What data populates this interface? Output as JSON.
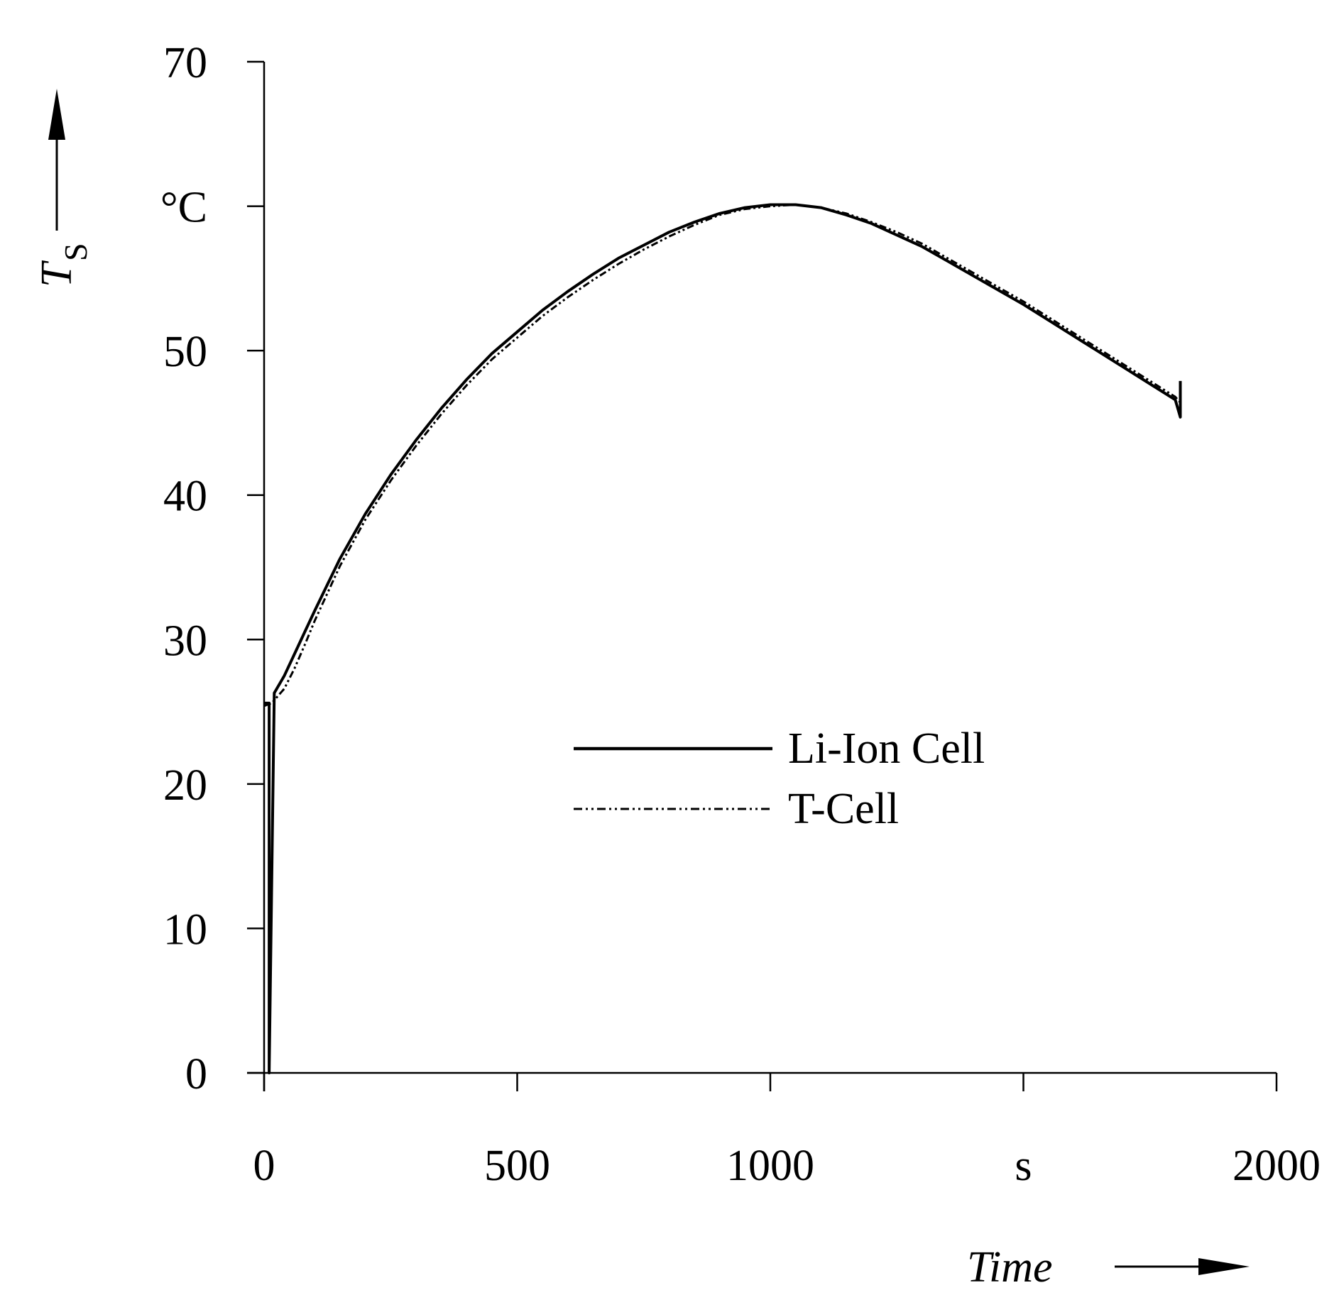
{
  "chart_data": {
    "type": "line",
    "xlim": [
      0,
      2000
    ],
    "ylim": [
      0,
      70
    ],
    "x_ticks": [
      {
        "value": 0,
        "label": "0"
      },
      {
        "value": 500,
        "label": "500"
      },
      {
        "value": 1000,
        "label": "1000"
      },
      {
        "value": 1500,
        "label": "s"
      },
      {
        "value": 2000,
        "label": "2000"
      }
    ],
    "y_ticks": [
      {
        "value": 0,
        "label": "0"
      },
      {
        "value": 10,
        "label": "10"
      },
      {
        "value": 20,
        "label": "20"
      },
      {
        "value": 30,
        "label": "30"
      },
      {
        "value": 40,
        "label": "40"
      },
      {
        "value": 50,
        "label": "50"
      },
      {
        "value": 60,
        "label": "°C"
      },
      {
        "value": 70,
        "label": "70"
      }
    ],
    "xlabel": "Time",
    "ylabel": {
      "main": "T",
      "sub": "S"
    },
    "grid": false,
    "legend_position": "center",
    "series": [
      {
        "name": "Li-Ion Cell",
        "style": "solid",
        "x": [
          0,
          10,
          10,
          20,
          40,
          60,
          80,
          100,
          125,
          150,
          200,
          250,
          300,
          350,
          400,
          450,
          500,
          550,
          600,
          650,
          700,
          750,
          800,
          850,
          900,
          950,
          1000,
          1050,
          1100,
          1150,
          1200,
          1250,
          1300,
          1350,
          1400,
          1450,
          1500,
          1550,
          1600,
          1650,
          1700,
          1750,
          1800,
          1810,
          1810,
          1810
        ],
        "y": [
          25.6,
          25.6,
          0,
          26.3,
          27.5,
          29.0,
          30.5,
          32.0,
          33.8,
          35.6,
          38.7,
          41.4,
          43.8,
          46.0,
          48.0,
          49.8,
          51.3,
          52.8,
          54.1,
          55.3,
          56.4,
          57.3,
          58.2,
          58.9,
          59.5,
          59.9,
          60.1,
          60.1,
          59.9,
          59.4,
          58.8,
          58.0,
          57.2,
          56.2,
          55.2,
          54.2,
          53.2,
          52.1,
          51.0,
          49.9,
          48.8,
          47.7,
          46.6,
          45.4,
          46.6,
          47.9
        ]
      },
      {
        "name": "T-Cell",
        "style": "dash-dot-dot",
        "x": [
          0,
          15,
          40,
          60,
          80,
          100,
          125,
          150,
          200,
          250,
          300,
          350,
          400,
          450,
          500,
          550,
          600,
          650,
          700,
          750,
          800,
          850,
          900,
          950,
          1000,
          1050,
          1100,
          1150,
          1200,
          1250,
          1300,
          1350,
          1400,
          1450,
          1500,
          1550,
          1600,
          1650,
          1700,
          1750,
          1800,
          1810
        ],
        "y": [
          25.4,
          25.6,
          26.6,
          28.0,
          29.6,
          31.3,
          33.2,
          35.1,
          38.3,
          41.0,
          43.4,
          45.6,
          47.6,
          49.4,
          50.9,
          52.4,
          53.7,
          54.9,
          56.0,
          57.0,
          57.9,
          58.7,
          59.4,
          59.8,
          60.0,
          60.1,
          59.9,
          59.5,
          58.9,
          58.2,
          57.4,
          56.4,
          55.4,
          54.4,
          53.4,
          52.3,
          51.2,
          50.1,
          49.0,
          47.9,
          46.8,
          46.4
        ]
      }
    ]
  }
}
